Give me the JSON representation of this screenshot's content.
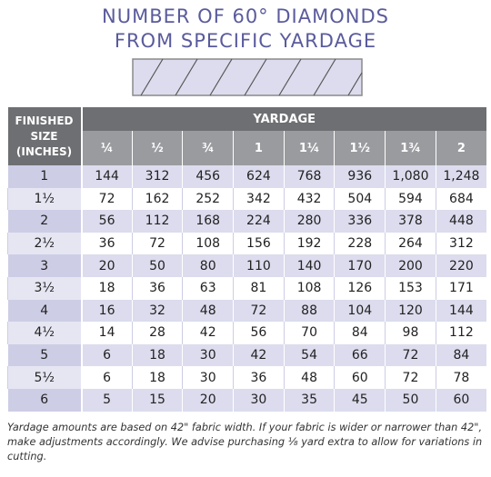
{
  "title": [
    "NUMBER OF 60° DIAMONDS",
    "FROM SPECIFIC YARDAGE"
  ],
  "table": {
    "corner_header": [
      "FINISHED",
      "SIZE",
      "(INCHES)"
    ],
    "group_header": "YARDAGE",
    "columns": [
      "¼",
      "½",
      "¾",
      "1",
      "1¼",
      "1½",
      "1¾",
      "2"
    ],
    "rows": [
      [
        "1",
        "144",
        "312",
        "456",
        "624",
        "768",
        "936",
        "1,080",
        "1,248"
      ],
      [
        "1½",
        "72",
        "162",
        "252",
        "342",
        "432",
        "504",
        "594",
        "684"
      ],
      [
        "2",
        "56",
        "112",
        "168",
        "224",
        "280",
        "336",
        "378",
        "448"
      ],
      [
        "2½",
        "36",
        "72",
        "108",
        "156",
        "192",
        "228",
        "264",
        "312"
      ],
      [
        "3",
        "20",
        "50",
        "80",
        "110",
        "140",
        "170",
        "200",
        "220"
      ],
      [
        "3½",
        "18",
        "36",
        "63",
        "81",
        "108",
        "126",
        "153",
        "171"
      ],
      [
        "4",
        "16",
        "32",
        "48",
        "72",
        "88",
        "104",
        "120",
        "144"
      ],
      [
        "4½",
        "14",
        "28",
        "42",
        "56",
        "70",
        "84",
        "98",
        "112"
      ],
      [
        "5",
        "6",
        "18",
        "30",
        "42",
        "54",
        "66",
        "72",
        "84"
      ],
      [
        "5½",
        "6",
        "18",
        "30",
        "36",
        "48",
        "60",
        "72",
        "78"
      ],
      [
        "6",
        "5",
        "15",
        "20",
        "30",
        "35",
        "45",
        "50",
        "60"
      ]
    ]
  },
  "footnote": "Yardage amounts are based on 42\" fabric width. If your fabric is wider or narrower than 42\", make adjustments accordingly. We advise purchasing ⅛ yard extra to allow for variations in cutting."
}
